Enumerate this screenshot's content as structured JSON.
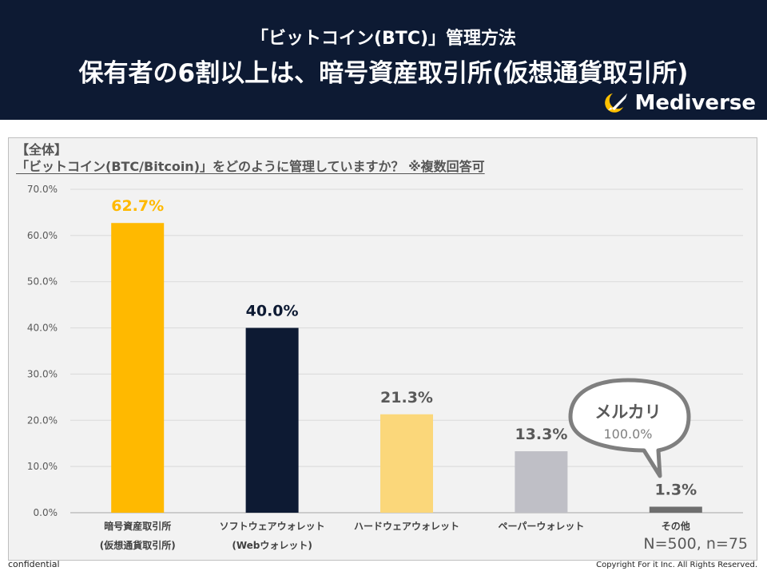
{
  "header": {
    "subtitle": "「ビットコイン(BTC)」管理方法",
    "title": "保有者の6割以上は、暗号資産取引所(仮想通貨取引所)"
  },
  "brand": {
    "name": "Mediverse",
    "icon": "rocket-moon-logo"
  },
  "question": {
    "group": "【全体】",
    "text": "「ビットコイン(BTC/Bitcoin)」をどのように管理していますか？ ※複数回答可"
  },
  "chart_data": {
    "type": "bar",
    "categories": [
      [
        "暗号資産取引所",
        "(仮想通貨取引所)"
      ],
      [
        "ソフトウェアウォレット",
        "(Webウォレット)"
      ],
      [
        "ハードウェアウォレット"
      ],
      [
        "ペーパーウォレット"
      ],
      [
        "その他"
      ]
    ],
    "values": [
      62.7,
      40.0,
      21.3,
      13.3,
      1.3
    ],
    "value_labels": [
      "62.7%",
      "40.0%",
      "21.3%",
      "13.3%",
      "1.3%"
    ],
    "bar_colors": [
      "#ffb900",
      "#0d1a33",
      "#fbd77a",
      "#bfbfc6",
      "#6e6e6e"
    ],
    "label_colors": [
      "#ffb900",
      "#0d1a33",
      "#595959",
      "#595959",
      "#595959"
    ],
    "ylim": [
      0,
      70
    ],
    "yticks": [
      0,
      10,
      20,
      30,
      40,
      50,
      60,
      70
    ],
    "ytick_labels": [
      "0.0%",
      "10.0%",
      "20.0%",
      "30.0%",
      "40.0%",
      "50.0%",
      "60.0%",
      "70.0%"
    ],
    "grid": true
  },
  "callout": {
    "title": "メルカリ",
    "value": "100.0%"
  },
  "sample_size": "N=500, n=75",
  "footer": {
    "left": "confidential",
    "right": "Copyright For it Inc. All Rights Reserved."
  }
}
